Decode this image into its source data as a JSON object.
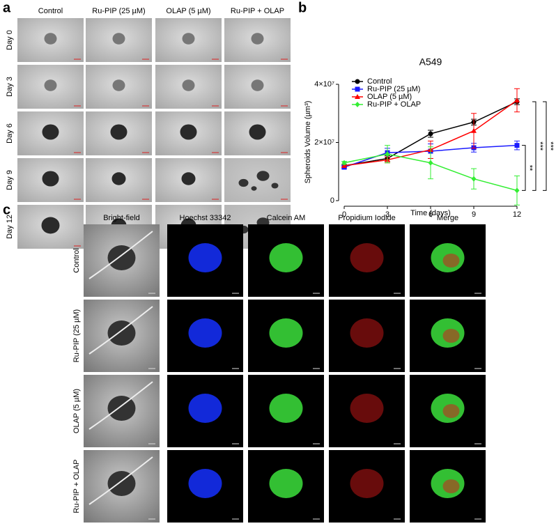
{
  "panel_a": {
    "label": "a",
    "columns": [
      "Control",
      "Ru-PIP (25 µM)",
      "OLAP (5 µM)",
      "Ru-PIP + OLAP"
    ],
    "rows": [
      "Day 0",
      "Day 3",
      "Day 6",
      "Day 9",
      "Day 12"
    ]
  },
  "panel_b": {
    "label": "b"
  },
  "chart_data": {
    "type": "line",
    "title": "A549",
    "xlabel": "Time (days)",
    "ylabel": "Spheroids Volume (µm³)",
    "x": [
      0,
      3,
      6,
      9,
      12
    ],
    "xlim": [
      0,
      12
    ],
    "xticks": [
      0,
      3,
      6,
      9,
      12
    ],
    "ylim": [
      0,
      40000000
    ],
    "yticks": [
      0,
      {
        "value": 20000000,
        "label": "2×10⁷"
      },
      {
        "value": 40000000,
        "label": "4×10⁷"
      }
    ],
    "legend": "upper-left",
    "series": [
      {
        "name": "Control",
        "color": "#000000",
        "marker": "circle",
        "values": [
          12000000,
          14500000,
          23000000,
          27000000,
          34000000
        ],
        "errors": [
          500000,
          1000000,
          1200000,
          1000000,
          1000000
        ]
      },
      {
        "name": "Ru-PIP (25 µM)",
        "color": "#1a1aff",
        "marker": "square",
        "values": [
          11500000,
          16500000,
          17000000,
          18200000,
          19000000
        ],
        "errors": [
          500000,
          1500000,
          2500000,
          1500000,
          1500000
        ]
      },
      {
        "name": "OLAP (5 µM)",
        "color": "#ff0000",
        "marker": "triangle",
        "values": [
          12000000,
          14000000,
          17500000,
          24000000,
          34500000
        ],
        "errors": [
          500000,
          1000000,
          3000000,
          6000000,
          4000000
        ]
      },
      {
        "name": "Ru-PIP + OLAP",
        "color": "#33ee33",
        "marker": "diamond",
        "values": [
          13000000,
          16000000,
          13000000,
          7500000,
          3500000
        ],
        "errors": [
          500000,
          3000000,
          5500000,
          3500000,
          5000000
        ]
      }
    ],
    "significance": [
      "**",
      "***",
      "***"
    ]
  },
  "panel_c": {
    "label": "c",
    "columns": [
      "Bright-field",
      "Hoechst 33342",
      "Calcein AM",
      "Propidium Iodide",
      "Merge"
    ],
    "rows": [
      "Control",
      "Ru-PIP (25 µM)",
      "OLAP (5 µM)",
      "Ru-PIP + OLAP"
    ]
  }
}
